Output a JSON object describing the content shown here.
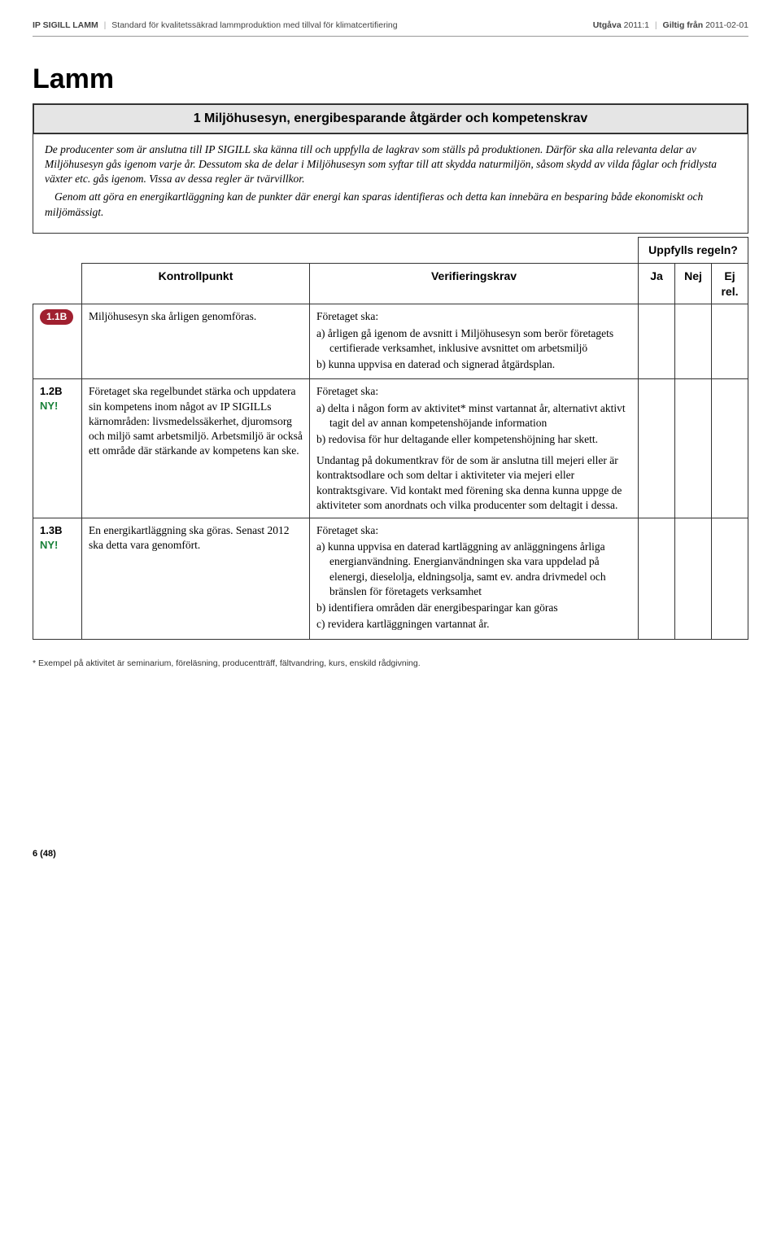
{
  "header": {
    "left_bold": "IP SIGILL LAMM",
    "left_rest": "Standard för kvalitetssäkrad lammproduktion med tillval för klimatcertifiering",
    "right_utgava_label": "Utgåva",
    "right_utgava_value": "2011:1",
    "right_giltig_label": "Giltig från",
    "right_giltig_value": "2011-02-01"
  },
  "title": "Lamm",
  "section_banner": "1  Miljöhusesyn, energibesparande åtgärder och kompetenskrav",
  "intro": {
    "p1": "De producenter som är anslutna till IP SIGILL ska känna till och uppfylla de lagkrav som ställs på produktionen. Därför ska alla relevanta delar av Miljöhusesyn gås igenom varje år. Dessutom ska de delar i Miljöhusesyn som syftar till att skydda naturmiljön, såsom skydd av vilda fåglar och fridlysta växter etc. gås igenom. Vissa av dessa regler är tvärvillkor.",
    "p2": "Genom att göra en energikartläggning kan de punkter där energi kan sparas identifieras och detta kan innebära en besparing både ekonomiskt och miljömässigt."
  },
  "table_headers": {
    "uppfylls": "Uppfylls regeln?",
    "kontrollpunkt": "Kontrollpunkt",
    "verifieringskrav": "Verifieringskrav",
    "ja": "Ja",
    "nej": "Nej",
    "ejrel": "Ej rel."
  },
  "rows": [
    {
      "id_pill": "1.1B",
      "id_extra": "",
      "kp": "Miljöhusesyn ska årligen genomföras.",
      "vk_lead": "Företaget ska:",
      "vk_items": [
        "a) årligen gå igenom de avsnitt i Miljöhusesyn som berör företagets certifierade verksamhet, inklusive avsnittet om arbetsmiljö",
        "b) kunna uppvisa en daterad och signerad åtgärdsplan."
      ],
      "vk_para": ""
    },
    {
      "id_text": "1.2B",
      "id_extra": "NY!",
      "kp": "Företaget ska regelbundet stärka och uppdatera sin kompetens inom något av IP SIGILLs kärnområden: livsmedelssäkerhet, djuromsorg och miljö samt arbetsmiljö. Arbetsmiljö är också ett område där stärkande av kompetens kan ske.",
      "vk_lead": "Företaget ska:",
      "vk_items": [
        "a) delta i någon form av aktivitet* minst vartannat år, alternativt aktivt tagit del av annan kompetenshöjande information",
        "b) redovisa för hur deltagande eller kompetenshöjning har skett."
      ],
      "vk_para": "Undantag på dokumentkrav för de som är anslutna till mejeri eller är kontraktsodlare och som deltar i aktiviteter via mejeri eller kontraktsgivare. Vid kontakt med förening ska denna kunna uppge de aktiviteter som anordnats och vilka producenter som deltagit i dessa."
    },
    {
      "id_text": "1.3B",
      "id_extra": "NY!",
      "kp": "En energikartläggning ska göras. Senast 2012 ska detta vara genomfört.",
      "vk_lead": "Företaget ska:",
      "vk_items": [
        "a) kunna uppvisa en daterad kartläggning av anläggningens årliga energianvändning. Energianvändningen ska vara uppdelad på elenergi, dieselolja, eldningsolja, samt ev. andra drivmedel och bränslen för företagets verksamhet",
        "b) identifiera områden där energibesparingar kan göras",
        "c) revidera kartläggningen vartannat år."
      ],
      "vk_para": ""
    }
  ],
  "footnote": "* Exempel på aktivitet är seminarium, föreläsning, producentträff, fältvandring, kurs, enskild rådgivning.",
  "pagenum": "6 (48)"
}
